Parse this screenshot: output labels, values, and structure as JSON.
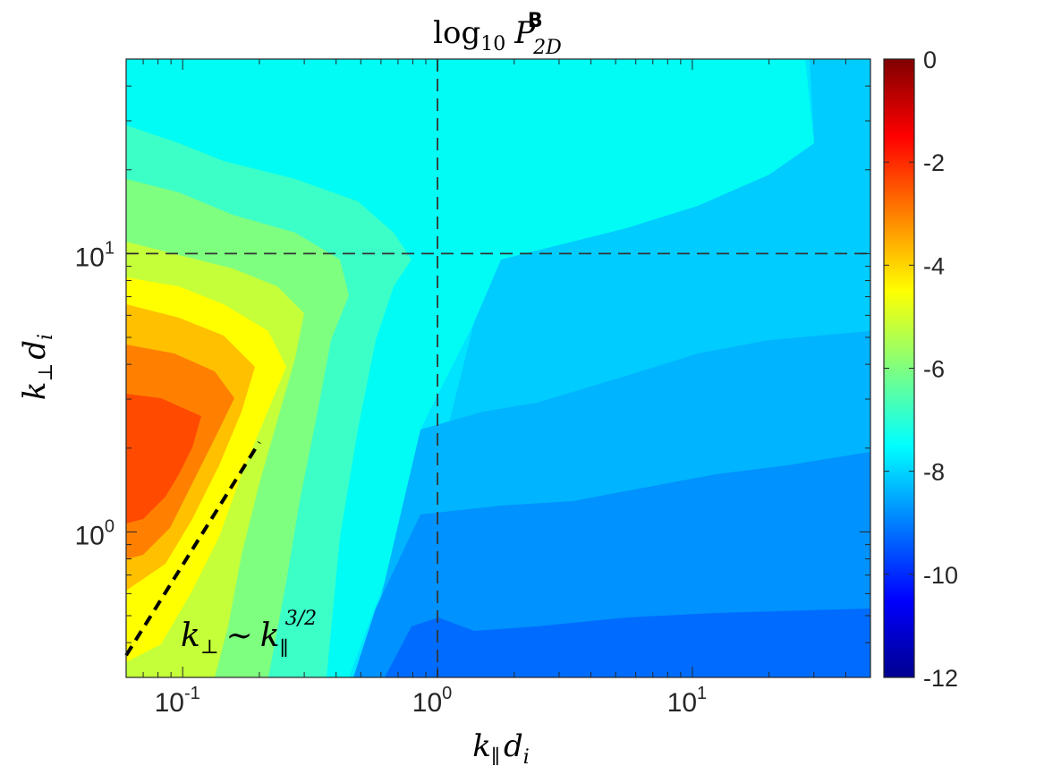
{
  "chart_data": {
    "type": "heatmap",
    "title": "log10 P2D^B",
    "title_parts": {
      "log": "log",
      "log_sub": "10",
      "P": "P",
      "P_sub": "2D",
      "P_sup": "B"
    },
    "xlabel": "k∥ di",
    "xlabel_parts": {
      "k": "k",
      "k_sub": "∥",
      "d": "d",
      "d_sub": "i"
    },
    "ylabel": "k⊥ di",
    "ylabel_parts": {
      "k": "k",
      "k_sub": "⊥",
      "d": "d",
      "d_sub": "i"
    },
    "x_scale": "log",
    "y_scale": "log",
    "xlim": [
      0.06,
      50
    ],
    "ylim": [
      0.3,
      50
    ],
    "x_ticks": [
      {
        "value": 0.1,
        "base": "10",
        "exp": "-1"
      },
      {
        "value": 1,
        "base": "10",
        "exp": "0"
      },
      {
        "value": 10,
        "base": "10",
        "exp": "1"
      }
    ],
    "y_ticks": [
      {
        "value": 1,
        "base": "10",
        "exp": "0"
      },
      {
        "value": 10,
        "base": "10",
        "exp": "1"
      }
    ],
    "colorbar": {
      "range": [
        -12,
        0
      ],
      "ticks": [
        "0",
        "-2",
        "-4",
        "-6",
        "-8",
        "-10",
        "-12"
      ],
      "colormap": "jet"
    },
    "reference_lines": [
      {
        "type": "vertical",
        "x": 1,
        "style": "dashed"
      },
      {
        "type": "horizontal",
        "y": 10,
        "style": "dashed"
      }
    ],
    "annotation": {
      "text": "k⊥ ~ k∥^3/2",
      "parts": {
        "k1": "k",
        "sub1": "⊥",
        "sim": "∼",
        "k2": "k",
        "sub2": "∥",
        "sup2": "3/2"
      },
      "line": {
        "x": [
          0.06,
          0.2
        ],
        "y": [
          0.36,
          2.1
        ],
        "style": "dashed"
      }
    }
  }
}
